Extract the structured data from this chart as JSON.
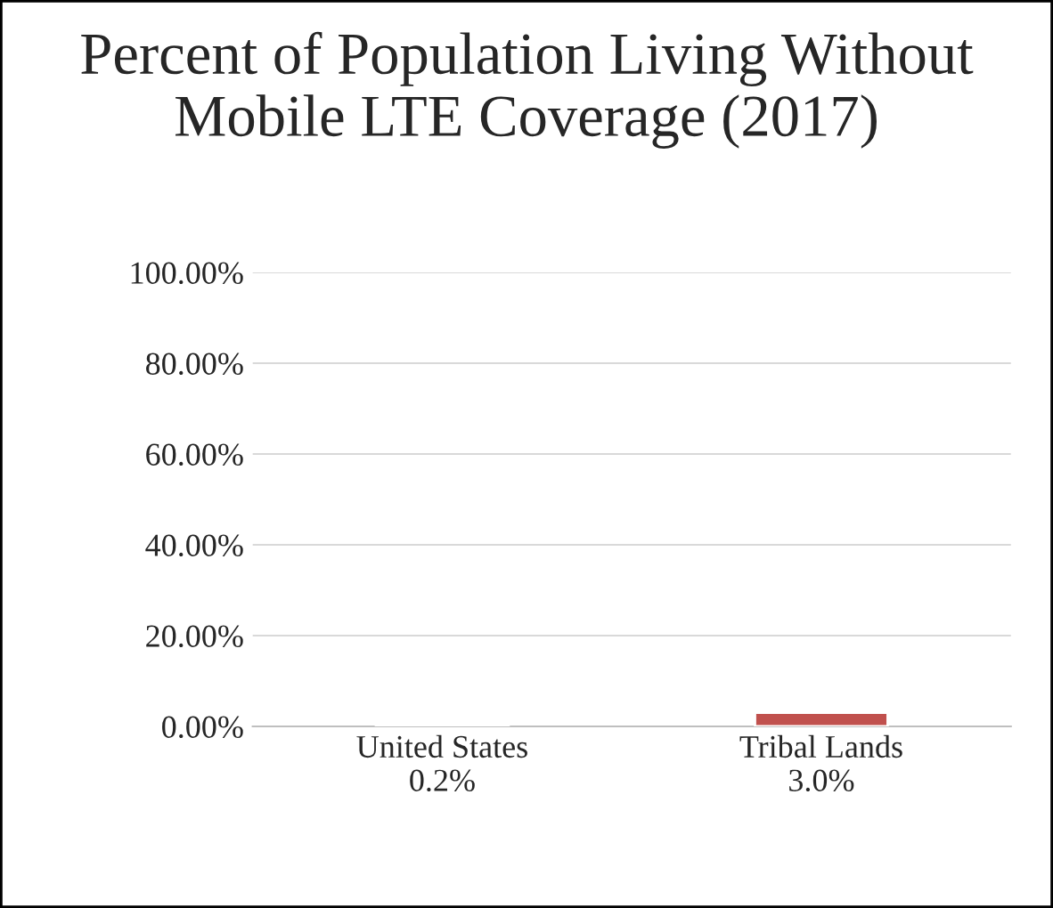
{
  "chart_data": {
    "type": "bar",
    "title": "Percent of Population Living Without Mobile LTE Coverage (2017)",
    "categories": [
      "United States",
      "Tribal Lands"
    ],
    "values": [
      0.2,
      3.0
    ],
    "value_labels": [
      "0.2%",
      "3.0%"
    ],
    "color": "#c0504d",
    "ylim": [
      0,
      100
    ],
    "yticks": [
      {
        "value": 0,
        "label": "0.00%"
      },
      {
        "value": 20,
        "label": "20.00%"
      },
      {
        "value": 40,
        "label": "40.00%"
      },
      {
        "value": 60,
        "label": "60.00%"
      },
      {
        "value": 80,
        "label": "80.00%"
      },
      {
        "value": 100,
        "label": "100.00%"
      }
    ],
    "grid": "y",
    "legend": false
  }
}
